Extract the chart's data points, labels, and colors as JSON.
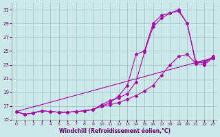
{
  "xlabel": "Windchill (Refroidissement éolien,°C)",
  "bg_color": "#cce8e8",
  "grid_color": "#aacece",
  "line_color": "#aa00aa",
  "xlim": [
    -0.5,
    23.5
  ],
  "ylim": [
    15,
    32
  ],
  "yticks": [
    15,
    17,
    19,
    21,
    23,
    25,
    27,
    29,
    31
  ],
  "xticks": [
    0,
    1,
    2,
    3,
    4,
    5,
    6,
    7,
    8,
    9,
    10,
    11,
    12,
    13,
    14,
    15,
    16,
    17,
    18,
    19,
    20,
    21,
    22,
    23
  ],
  "series": [
    {
      "x": [
        0,
        1,
        2,
        3,
        4,
        5,
        6,
        7,
        8,
        9,
        10,
        11,
        12,
        13,
        14,
        15,
        16,
        17,
        18,
        19,
        20,
        21,
        22,
        23
      ],
      "y": [
        16.2,
        15.8,
        16.0,
        16.3,
        16.2,
        16.1,
        16.1,
        16.2,
        16.3,
        16.5,
        17.0,
        17.2,
        17.5,
        18.0,
        18.5,
        19.2,
        20.0,
        21.5,
        23.0,
        24.2,
        24.5,
        23.2,
        23.5,
        24.0
      ]
    },
    {
      "x": [
        0,
        1,
        2,
        3,
        4,
        5,
        6,
        7,
        8,
        9,
        10,
        11,
        12,
        13,
        14,
        15,
        16,
        17,
        18,
        19,
        20,
        21,
        22,
        23
      ],
      "y": [
        16.2,
        15.8,
        16.0,
        16.3,
        16.2,
        16.1,
        16.1,
        16.2,
        16.3,
        16.5,
        17.2,
        17.8,
        18.2,
        18.8,
        20.5,
        24.8,
        28.5,
        29.8,
        30.5,
        31.0,
        29.0,
        23.5,
        23.2,
        24.2
      ]
    },
    {
      "x": [
        0,
        1,
        2,
        3,
        4,
        5,
        6,
        7,
        8,
        9,
        10,
        11,
        12,
        13,
        14,
        15,
        16,
        17,
        18,
        19,
        20,
        21,
        22,
        23
      ],
      "y": [
        16.2,
        15.8,
        16.0,
        16.3,
        16.2,
        16.1,
        16.1,
        16.2,
        16.3,
        16.5,
        17.0,
        17.5,
        18.5,
        20.0,
        24.5,
        25.0,
        29.0,
        30.2,
        30.5,
        30.8,
        29.0,
        23.2,
        23.0,
        24.0
      ]
    },
    {
      "x": [
        0,
        23
      ],
      "y": [
        16.2,
        24.0
      ]
    }
  ]
}
